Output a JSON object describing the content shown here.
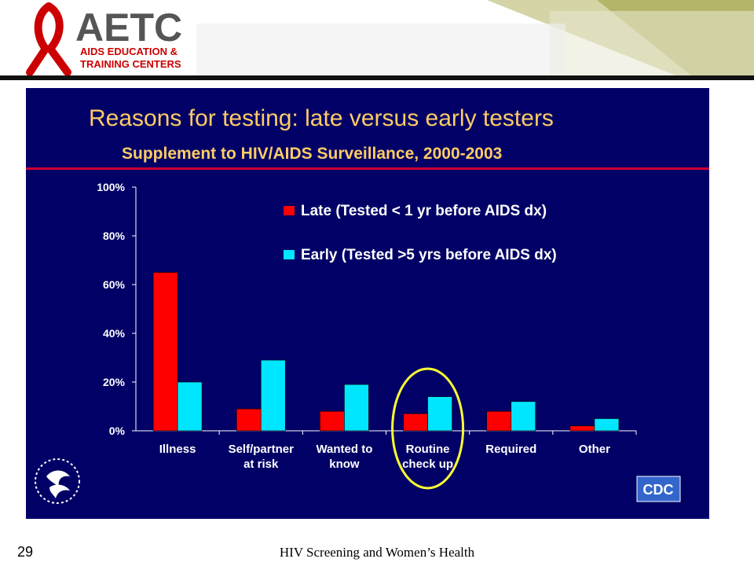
{
  "header": {
    "logo_main": "AETC",
    "logo_line1": "AIDS EDUCATION &",
    "logo_line2": "TRAINING CENTERS"
  },
  "slide": {
    "title": "Reasons for testing: late versus early testers",
    "subtitle": "Supplement to HIV/AIDS Surveillance, 2000-2003",
    "cdc_logo": "CDC"
  },
  "footer": {
    "page_number": "29",
    "title": "HIV Screening and Women’s Health"
  },
  "colors": {
    "late": "#ff0000",
    "early": "#00e6ff",
    "slide_bg": "#000066",
    "title": "#ffcc66",
    "divider": "#cc0033",
    "highlight_ellipse": "#ffff33"
  },
  "chart_data": {
    "type": "bar",
    "title": "Reasons for testing: late versus early testers",
    "subtitle": "Supplement to HIV/AIDS Surveillance, 2000-2003",
    "xlabel": "",
    "ylabel": "",
    "categories": [
      [
        "Illness"
      ],
      [
        "Self/partner",
        "at risk"
      ],
      [
        "Wanted to",
        "know"
      ],
      [
        "Routine",
        "check up"
      ],
      [
        "Required"
      ],
      [
        "Other"
      ]
    ],
    "series": [
      {
        "name": "Late (Tested < 1 yr before AIDS dx)",
        "values": [
          65,
          9,
          8,
          7,
          8,
          2
        ]
      },
      {
        "name": "Early  (Tested >5 yrs before AIDS dx)",
        "values": [
          20,
          29,
          19,
          14,
          12,
          5
        ]
      }
    ],
    "ylim": [
      0,
      100
    ],
    "yticks": [
      "0%",
      "20%",
      "40%",
      "60%",
      "80%",
      "100%"
    ],
    "legend_position": "top-right",
    "grid": false,
    "highlighted_category": "Routine check up"
  }
}
